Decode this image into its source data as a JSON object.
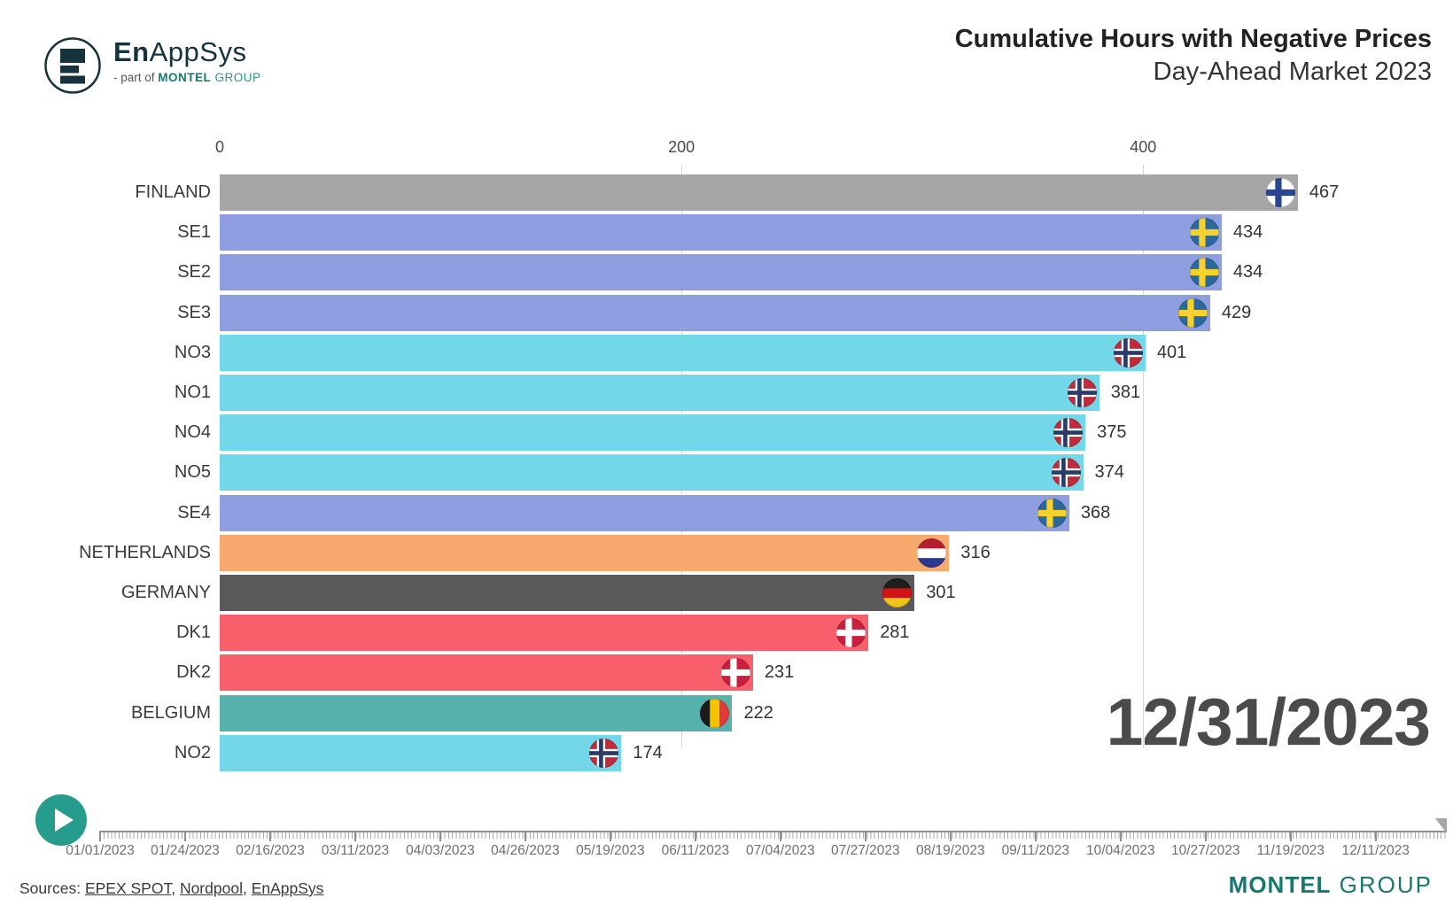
{
  "header": {
    "logo": {
      "brand_bold": "En",
      "brand_rest": "AppSys",
      "tagline_prefix": "- part of ",
      "tagline_montel": "MONTEL",
      "tagline_group": " GROUP"
    },
    "title": "Cumulative Hours with Negative Prices",
    "subtitle": "Day-Ahead Market 2023"
  },
  "chart_data": {
    "type": "bar",
    "orientation": "horizontal",
    "title": "Cumulative Hours with Negative Prices",
    "subtitle": "Day-Ahead Market 2023",
    "xlabel": "",
    "ylabel": "",
    "unit": "hours",
    "xlim": [
      0,
      500
    ],
    "x_ticks": [
      0,
      200,
      400
    ],
    "grid": "vertical",
    "legend": "none",
    "categories": [
      "FINLAND",
      "SE1",
      "SE2",
      "SE3",
      "NO3",
      "NO1",
      "NO4",
      "NO5",
      "SE4",
      "NETHERLANDS",
      "GERMANY",
      "DK1",
      "DK2",
      "BELGIUM",
      "NO2"
    ],
    "values": [
      467,
      434,
      434,
      429,
      401,
      381,
      375,
      374,
      368,
      316,
      301,
      281,
      231,
      222,
      174
    ],
    "bars": [
      {
        "label": "FINLAND",
        "value": 467,
        "color": "#a6a6a6",
        "flag": "fi",
        "country": "finland"
      },
      {
        "label": "SE1",
        "value": 434,
        "color": "#8f9de1",
        "flag": "se",
        "country": "sweden"
      },
      {
        "label": "SE2",
        "value": 434,
        "color": "#8f9de1",
        "flag": "se",
        "country": "sweden"
      },
      {
        "label": "SE3",
        "value": 429,
        "color": "#8f9de1",
        "flag": "se",
        "country": "sweden"
      },
      {
        "label": "NO3",
        "value": 401,
        "color": "#72d7e9",
        "flag": "no",
        "country": "norway"
      },
      {
        "label": "NO1",
        "value": 381,
        "color": "#72d7e9",
        "flag": "no",
        "country": "norway"
      },
      {
        "label": "NO4",
        "value": 375,
        "color": "#72d7e9",
        "flag": "no",
        "country": "norway"
      },
      {
        "label": "NO5",
        "value": 374,
        "color": "#72d7e9",
        "flag": "no",
        "country": "norway"
      },
      {
        "label": "SE4",
        "value": 368,
        "color": "#8f9de1",
        "flag": "se",
        "country": "sweden"
      },
      {
        "label": "NETHERLANDS",
        "value": 316,
        "color": "#f7a96e",
        "flag": "nl",
        "country": "netherlands"
      },
      {
        "label": "GERMANY",
        "value": 301,
        "color": "#595959",
        "flag": "de",
        "country": "germany"
      },
      {
        "label": "DK1",
        "value": 281,
        "color": "#f7606a",
        "flag": "dk",
        "country": "denmark"
      },
      {
        "label": "DK2",
        "value": 231,
        "color": "#f7606a",
        "flag": "dk",
        "country": "denmark"
      },
      {
        "label": "BELGIUM",
        "value": 222,
        "color": "#57b1ac",
        "flag": "be",
        "country": "belgium"
      },
      {
        "label": "NO2",
        "value": 174,
        "color": "#72d7e9",
        "flag": "no",
        "country": "norway"
      }
    ]
  },
  "flag_colors": {
    "fi": {
      "bg": "#ffffff",
      "cross": "#2a4693"
    },
    "se": {
      "bg": "#2b699c",
      "cross": "#f8d12e"
    },
    "no": {
      "bg": "#c22a3d",
      "outer": "#ffffff",
      "inner": "#2b3a67"
    },
    "dk": {
      "bg": "#c8203e",
      "cross": "#ffffff"
    },
    "nl": {
      "stripes": [
        "#b6202e",
        "#ffffff",
        "#2b3a8c"
      ],
      "direction": "horizontal"
    },
    "de": {
      "stripes": [
        "#1d1d1b",
        "#d01317",
        "#f0c418"
      ],
      "direction": "horizontal"
    },
    "be": {
      "stripes": [
        "#1a1a1a",
        "#f5c400",
        "#e23a3a"
      ],
      "direction": "vertical"
    }
  },
  "current_date": "12/31/2023",
  "timeline": {
    "start": "01/01/2023",
    "end": "12/31/2023",
    "labels": [
      "01/01/2023",
      "01/24/2023",
      "02/16/2023",
      "03/11/2023",
      "04/03/2023",
      "04/26/2023",
      "05/19/2023",
      "06/11/2023",
      "07/04/2023",
      "07/27/2023",
      "08/19/2023",
      "09/11/2023",
      "10/04/2023",
      "10/27/2023",
      "11/19/2023",
      "12/11/2023"
    ]
  },
  "sources": {
    "prefix": "Sources: ",
    "links": [
      "EPEX SPOT",
      "Nordpool",
      "EnAppSys"
    ],
    "separator": ", "
  },
  "footer_logo": {
    "montel": "MONTEL",
    "group": " GROUP"
  },
  "colors": {
    "play_button": "#269c8d",
    "montel_teal": "#17796d",
    "logo_dark": "#16323c",
    "date_gray": "#4b4b4b",
    "gridline": "rgba(110,110,110,0.28)",
    "timeline_gray": "#8f8f8f"
  }
}
